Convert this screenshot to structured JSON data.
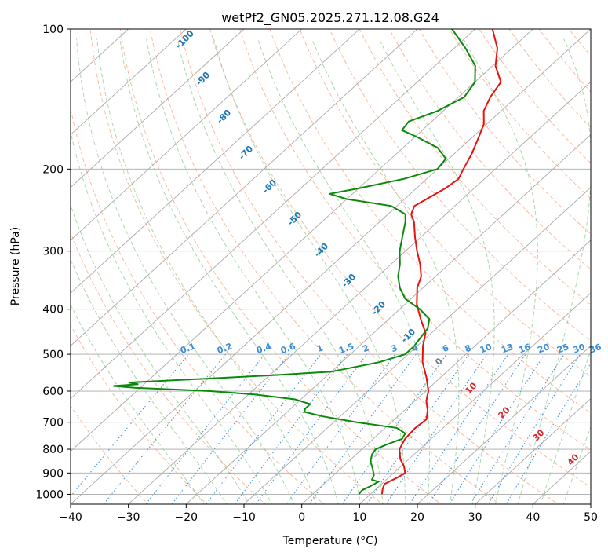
{
  "chart_data": {
    "type": "skew-t",
    "title": "wetPf2_GN05.2025.271.12.08.G24",
    "xlabel": "Temperature (°C)",
    "ylabel": "Pressure (hPa)",
    "xlim": [
      -40,
      50
    ],
    "ylim": [
      1050,
      100
    ],
    "y_scale": "log",
    "grid": true,
    "x_ticks": [
      {
        "value": -40,
        "label": "−40"
      },
      {
        "value": -30,
        "label": "−30"
      },
      {
        "value": -20,
        "label": "−20"
      },
      {
        "value": -10,
        "label": "−10"
      },
      {
        "value": 0,
        "label": "0"
      },
      {
        "value": 10,
        "label": "10"
      },
      {
        "value": 20,
        "label": "20"
      },
      {
        "value": 30,
        "label": "30"
      },
      {
        "value": 40,
        "label": "40"
      },
      {
        "value": 50,
        "label": "50"
      }
    ],
    "y_ticks": [
      {
        "value": 100,
        "label": "100"
      },
      {
        "value": 200,
        "label": "200"
      },
      {
        "value": 300,
        "label": "300"
      },
      {
        "value": 400,
        "label": "400"
      },
      {
        "value": 500,
        "label": "500"
      },
      {
        "value": 600,
        "label": "600"
      },
      {
        "value": 700,
        "label": "700"
      },
      {
        "value": 800,
        "label": "800"
      },
      {
        "value": 900,
        "label": "900"
      },
      {
        "value": 1000,
        "label": "1000"
      }
    ],
    "series": [
      {
        "color": "#e8120f",
        "values_temperature_c": [
          [
            1000,
            12
          ],
          [
            970,
            11
          ],
          [
            950,
            10.5
          ],
          [
            920,
            11.5
          ],
          [
            900,
            12
          ],
          [
            870,
            10.5
          ],
          [
            840,
            8.5
          ],
          [
            800,
            6.5
          ],
          [
            760,
            5.5
          ],
          [
            720,
            5.2
          ],
          [
            690,
            5.5
          ],
          [
            660,
            4
          ],
          [
            630,
            2
          ],
          [
            600,
            0.5
          ],
          [
            560,
            -2.5
          ],
          [
            520,
            -6
          ],
          [
            480,
            -9
          ],
          [
            450,
            -11
          ],
          [
            420,
            -14.5
          ],
          [
            390,
            -18
          ],
          [
            360,
            -21
          ],
          [
            340,
            -22.5
          ],
          [
            320,
            -25
          ],
          [
            300,
            -28
          ],
          [
            280,
            -31
          ],
          [
            260,
            -34
          ],
          [
            250,
            -36
          ],
          [
            240,
            -37
          ],
          [
            230,
            -36
          ],
          [
            220,
            -35
          ],
          [
            210,
            -34.5
          ],
          [
            200,
            -35.5
          ],
          [
            185,
            -37
          ],
          [
            170,
            -39
          ],
          [
            160,
            -40.5
          ],
          [
            150,
            -43
          ],
          [
            140,
            -44.5
          ],
          [
            130,
            -45.5
          ],
          [
            120,
            -49.5
          ],
          [
            110,
            -52.5
          ],
          [
            100,
            -57
          ]
        ]
      },
      {
        "color": "#0a8a0a",
        "values_dewpoint_c": [
          [
            1000,
            8
          ],
          [
            980,
            7.8
          ],
          [
            960,
            8.5
          ],
          [
            940,
            9
          ],
          [
            930,
            7.5
          ],
          [
            910,
            7
          ],
          [
            880,
            5.5
          ],
          [
            850,
            3.8
          ],
          [
            820,
            2.7
          ],
          [
            800,
            2.4
          ],
          [
            780,
            3.5
          ],
          [
            760,
            5
          ],
          [
            740,
            4.5
          ],
          [
            720,
            2
          ],
          [
            700,
            -6
          ],
          [
            680,
            -13
          ],
          [
            665,
            -17
          ],
          [
            655,
            -17.5
          ],
          [
            640,
            -17.5
          ],
          [
            625,
            -21
          ],
          [
            610,
            -29
          ],
          [
            600,
            -37.2
          ],
          [
            590,
            -51
          ],
          [
            585,
            -55
          ],
          [
            580,
            -51
          ],
          [
            575,
            -53
          ],
          [
            570,
            -47
          ],
          [
            555,
            -30
          ],
          [
            545,
            -20
          ],
          [
            520,
            -13.5
          ],
          [
            500,
            -10.5
          ],
          [
            480,
            -10.5
          ],
          [
            460,
            -11
          ],
          [
            440,
            -11.5
          ],
          [
            420,
            -13
          ],
          [
            400,
            -16.5
          ],
          [
            380,
            -21
          ],
          [
            360,
            -24
          ],
          [
            340,
            -26.5
          ],
          [
            320,
            -28.5
          ],
          [
            300,
            -31
          ],
          [
            280,
            -33.2
          ],
          [
            260,
            -35.5
          ],
          [
            250,
            -37
          ],
          [
            240,
            -41
          ],
          [
            232,
            -50
          ],
          [
            226,
            -54
          ],
          [
            220,
            -50
          ],
          [
            210,
            -44
          ],
          [
            200,
            -40
          ],
          [
            190,
            -40.5
          ],
          [
            180,
            -44
          ],
          [
            170,
            -50
          ],
          [
            165,
            -53.5
          ],
          [
            158,
            -54
          ],
          [
            150,
            -51
          ],
          [
            140,
            -49
          ],
          [
            130,
            -50
          ],
          [
            120,
            -53
          ],
          [
            110,
            -58
          ],
          [
            100,
            -64
          ]
        ]
      }
    ],
    "dry_adiabat_labels": [
      "-100",
      "-90",
      "-80",
      "-70",
      "-60",
      "-50",
      "-40",
      "-30",
      "-20",
      "-10"
    ],
    "moist_adiabat_labels": [
      "0",
      "10",
      "20",
      "30",
      "40"
    ],
    "mixing_ratio_labels": [
      "0.1",
      "0.2",
      "0.4",
      "0.6",
      "1",
      "1.5",
      "2",
      "3",
      "4",
      "6",
      "8",
      "10",
      "13",
      "16",
      "20",
      "25",
      "30",
      "36"
    ],
    "colors": {
      "temperature": "#e8120f",
      "dewpoint": "#0a8a0a",
      "isotherm": "#aaaaaa",
      "dry_adiabat": "#f4a582",
      "moist_adiabat": "#8fc98f",
      "mixing_ratio": "#3b8fd8",
      "dry_label": "#1f77b4",
      "moist_label": "#d62728",
      "zero_moist_label": "#7f7f7f"
    }
  }
}
